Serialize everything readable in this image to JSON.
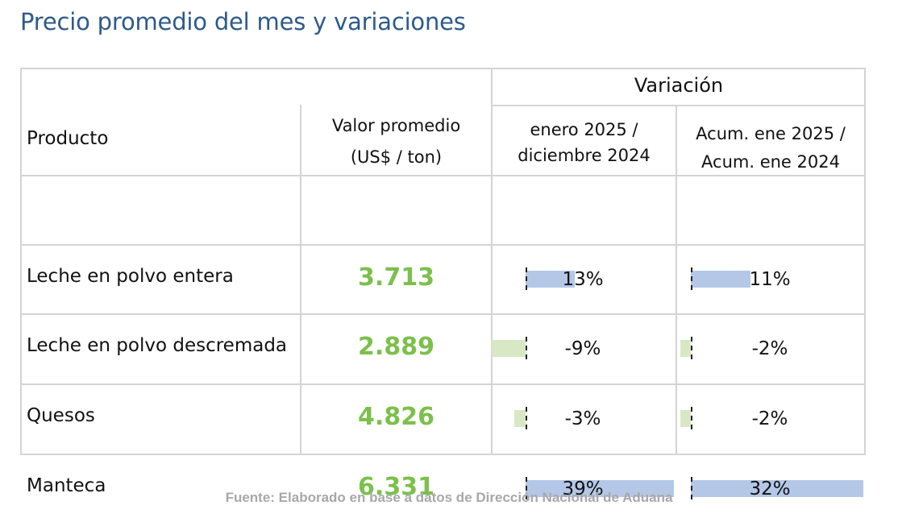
{
  "title": "Precio promedio del mes y variaciones",
  "colors": {
    "title": "#2e5a8a",
    "value_green": "#7cc04c",
    "bar_positive": "#b4c7e7",
    "bar_negative": "#d8e8c4"
  },
  "header": {
    "group": "Variación",
    "product": "Producto",
    "value_line1": "Valor promedio",
    "value_line2": "(US$ / ton)",
    "var1_line1": "enero 2025 /",
    "var1_line2": "diciembre 2024",
    "var2_line1": "Acum. ene 2025 /",
    "var2_line2": "Acum. ene 2024"
  },
  "chart_data": {
    "type": "table",
    "columns": [
      "Producto",
      "Valor promedio (US$ / ton)",
      "enero 2025 / diciembre 2024",
      "Acum. ene 2025 / Acum. ene 2024"
    ],
    "rows": [
      {
        "product": "Leche en polvo entera",
        "value": "3.713",
        "var_month": 13,
        "var_month_label": "13%",
        "var_acum": 11,
        "var_acum_label": "11%"
      },
      {
        "product": "Leche en polvo descremada",
        "value": "2.889",
        "var_month": -9,
        "var_month_label": "-9%",
        "var_acum": -2,
        "var_acum_label": "-2%"
      },
      {
        "product": "Quesos",
        "value": "4.826",
        "var_month": -3,
        "var_month_label": "-3%",
        "var_acum": -2,
        "var_acum_label": "-2%"
      },
      {
        "product": "Manteca",
        "value": "6.331",
        "var_month": 39,
        "var_month_label": "39%",
        "var_acum": 32,
        "var_acum_label": "32%"
      }
    ]
  },
  "footer": "Fuente: Elaborado en base a datos de Dirección Nacional de Aduana"
}
